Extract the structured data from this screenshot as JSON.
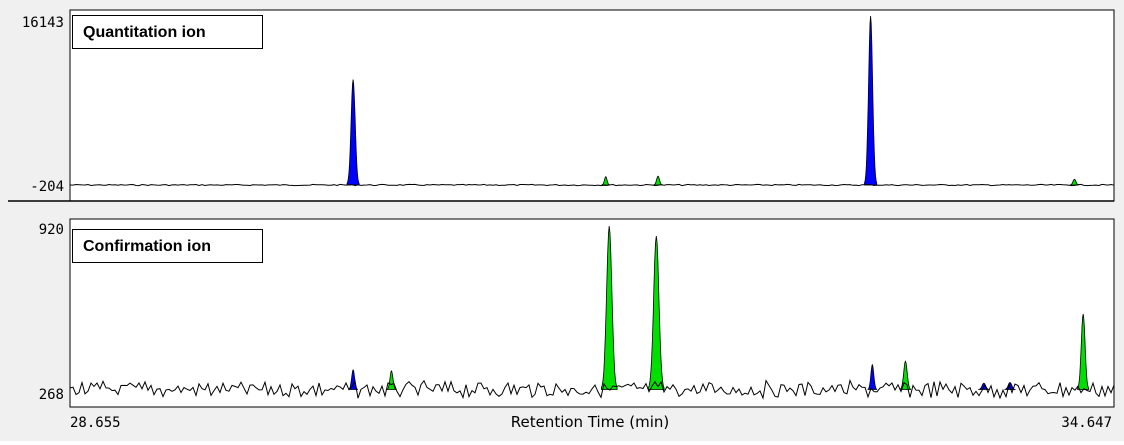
{
  "chart_data": [
    {
      "type": "area",
      "panel_label": "Quantitation ion",
      "y_top_label": "16143",
      "y_bottom_label": "-204",
      "ylim": [
        -204,
        16143
      ],
      "xlim": [
        28.655,
        34.647
      ],
      "grid": false,
      "colors": {
        "trace": "#000000",
        "target_peak": "#0000ff",
        "other_peak": "#00e000"
      },
      "peaks": [
        {
          "center": 30.28,
          "width": 0.07,
          "height": 10000,
          "color_key": "target_peak"
        },
        {
          "center": 31.73,
          "width": 0.045,
          "height": 600,
          "color_key": "other_peak"
        },
        {
          "center": 32.03,
          "width": 0.05,
          "height": 650,
          "color_key": "other_peak"
        },
        {
          "center": 33.25,
          "width": 0.07,
          "height": 16143,
          "color_key": "target_peak"
        },
        {
          "center": 34.42,
          "width": 0.05,
          "height": 350,
          "color_key": "other_peak"
        }
      ]
    },
    {
      "type": "area",
      "panel_label": "Confirmation ion",
      "y_top_label": "920",
      "y_bottom_label": "268",
      "ylim": [
        268,
        920
      ],
      "xlim": [
        28.655,
        34.647
      ],
      "grid": false,
      "colors": {
        "trace": "#000000",
        "target_peak": "#0000ff",
        "other_peak": "#00e000"
      },
      "baseline": 270,
      "peaks": [
        {
          "center": 30.28,
          "width": 0.05,
          "height": 348,
          "color_key": "target_peak"
        },
        {
          "center": 30.5,
          "width": 0.05,
          "height": 344,
          "color_key": "other_peak"
        },
        {
          "center": 31.75,
          "width": 0.09,
          "height": 920,
          "color_key": "other_peak"
        },
        {
          "center": 32.02,
          "width": 0.09,
          "height": 880,
          "color_key": "other_peak"
        },
        {
          "center": 33.26,
          "width": 0.05,
          "height": 368,
          "color_key": "target_peak"
        },
        {
          "center": 33.45,
          "width": 0.06,
          "height": 382,
          "color_key": "other_peak"
        },
        {
          "center": 33.9,
          "width": 0.06,
          "height": 295,
          "color_key": "target_peak"
        },
        {
          "center": 34.05,
          "width": 0.06,
          "height": 298,
          "color_key": "target_peak"
        },
        {
          "center": 34.47,
          "width": 0.065,
          "height": 570,
          "color_key": "other_peak"
        }
      ]
    }
  ],
  "x_axis": {
    "label": "Retention Time (min)",
    "start_label": "28.655",
    "end_label": "34.647"
  }
}
